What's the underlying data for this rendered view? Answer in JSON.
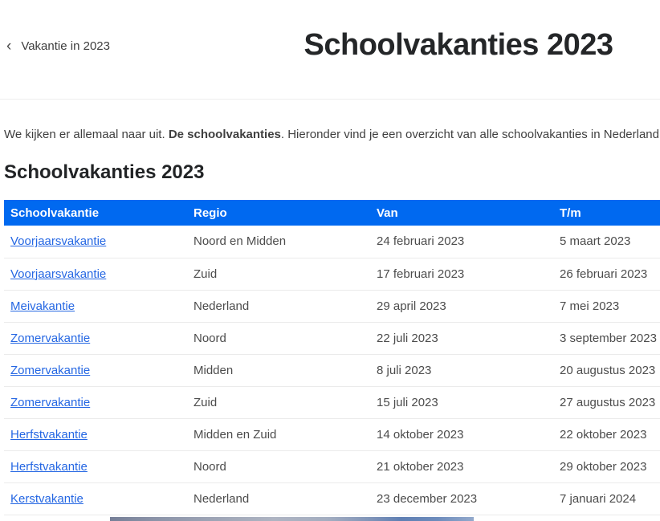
{
  "page": {
    "back_link": {
      "chevron": "‹",
      "label": "Vakantie in 2023"
    },
    "title": "Schoolvakanties 2023",
    "intro": {
      "part1": "We kijken er allemaal naar uit. ",
      "bold": "De schoolvakanties",
      "part2": ". Hieronder vind je een overzicht van alle schoolvakanties in Nederland."
    },
    "section_heading": "Schoolvakanties 2023"
  },
  "table": {
    "headers": [
      "Schoolvakantie",
      "Regio",
      "Van",
      "T/m"
    ],
    "rows": [
      {
        "vakantie": "Voorjaarsvakantie",
        "regio": "Noord en Midden",
        "van": "24 februari 2023",
        "tm": "5 maart 2023"
      },
      {
        "vakantie": "Voorjaarsvakantie",
        "regio": "Zuid",
        "van": "17 februari 2023",
        "tm": "26 februari 2023"
      },
      {
        "vakantie": "Meivakantie",
        "regio": "Nederland",
        "van": "29 april 2023",
        "tm": "7 mei 2023"
      },
      {
        "vakantie": "Zomervakantie",
        "regio": "Noord",
        "van": "22 juli 2023",
        "tm": "3 september 2023"
      },
      {
        "vakantie": "Zomervakantie",
        "regio": "Midden",
        "van": "8 juli 2023",
        "tm": "20 augustus 2023"
      },
      {
        "vakantie": "Zomervakantie",
        "regio": "Zuid",
        "van": "15 juli 2023",
        "tm": "27 augustus 2023"
      },
      {
        "vakantie": "Herfstvakantie",
        "regio": "Midden en Zuid",
        "van": "14 oktober 2023",
        "tm": "22 oktober 2023"
      },
      {
        "vakantie": "Herfstvakantie",
        "regio": "Noord",
        "van": "21 oktober 2023",
        "tm": "29 oktober 2023"
      },
      {
        "vakantie": "Kerstvakantie",
        "regio": "Nederland",
        "van": "23 december 2023",
        "tm": "7 januari 2024"
      }
    ]
  },
  "colors": {
    "table_header_bg": "#0069f0",
    "table_header_text": "#ffffff",
    "link": "#2567e3",
    "body_text": "#4c4c4c",
    "heading_text": "#242628",
    "divider": "#ebebeb"
  }
}
